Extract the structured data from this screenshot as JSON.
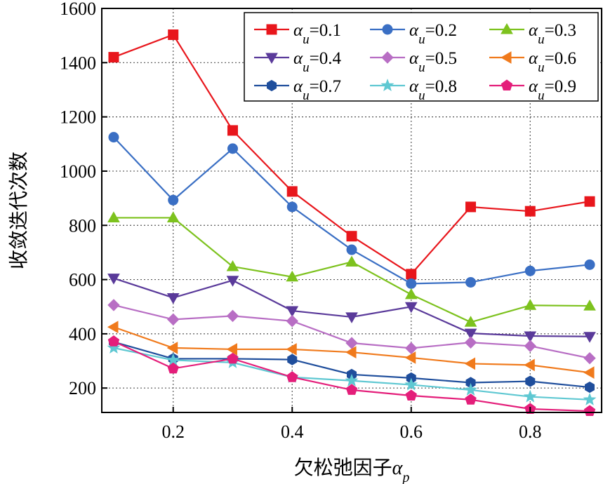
{
  "chart_data": {
    "type": "line",
    "x": [
      0.1,
      0.2,
      0.3,
      0.4,
      0.5,
      0.6,
      0.7,
      0.8,
      0.9
    ],
    "xlabel": "欠松弛因子",
    "xlabel_symbol": "α",
    "xlabel_sub": "p",
    "ylabel": "收敛迭代次数",
    "xlim": [
      0.08,
      0.92
    ],
    "ylim": [
      110,
      1600
    ],
    "xticks": [
      0.2,
      0.4,
      0.6,
      0.8
    ],
    "xtick_labels": [
      "0.2",
      "0.4",
      "0.6",
      "0.8"
    ],
    "yticks": [
      200,
      400,
      600,
      800,
      1000,
      1200,
      1400,
      1600
    ],
    "ytick_labels": [
      "200",
      "400",
      "600",
      "800",
      "1000",
      "1200",
      "1400",
      "1600"
    ],
    "grid": true,
    "legend_position": "top-right",
    "legend_symbol": "α",
    "legend_sub": "u",
    "series": [
      {
        "name": "=0.1",
        "color": "#e8161c",
        "marker": "square",
        "values": [
          1420,
          1503,
          1150,
          925,
          760,
          620,
          868,
          852,
          888
        ]
      },
      {
        "name": "=0.2",
        "color": "#3a6fc4",
        "marker": "circle",
        "values": [
          1125,
          893,
          1083,
          868,
          710,
          585,
          590,
          632,
          655
        ]
      },
      {
        "name": "=0.3",
        "color": "#7dc21e",
        "marker": "triangle-up",
        "values": [
          828,
          828,
          648,
          610,
          665,
          545,
          443,
          505,
          503
        ]
      },
      {
        "name": "=0.4",
        "color": "#5a3a9a",
        "marker": "triangle-down",
        "values": [
          605,
          533,
          597,
          485,
          462,
          500,
          402,
          392,
          390
        ]
      },
      {
        "name": "=0.5",
        "color": "#b86ec4",
        "marker": "diamond",
        "values": [
          506,
          453,
          466,
          447,
          366,
          347,
          368,
          355,
          310
        ]
      },
      {
        "name": "=0.6",
        "color": "#f07a1c",
        "marker": "triangle-left",
        "values": [
          425,
          348,
          343,
          343,
          332,
          312,
          290,
          285,
          257
        ]
      },
      {
        "name": "=0.7",
        "color": "#1f4e9c",
        "marker": "hexagon",
        "values": [
          370,
          308,
          308,
          305,
          250,
          237,
          220,
          225,
          203
        ]
      },
      {
        "name": "=0.8",
        "color": "#5fc8d2",
        "marker": "star",
        "values": [
          348,
          303,
          294,
          240,
          227,
          212,
          193,
          168,
          157
        ]
      },
      {
        "name": "=0.9",
        "color": "#e41e7a",
        "marker": "pentagon",
        "values": [
          372,
          272,
          308,
          240,
          193,
          172,
          157,
          123,
          115
        ]
      }
    ]
  }
}
